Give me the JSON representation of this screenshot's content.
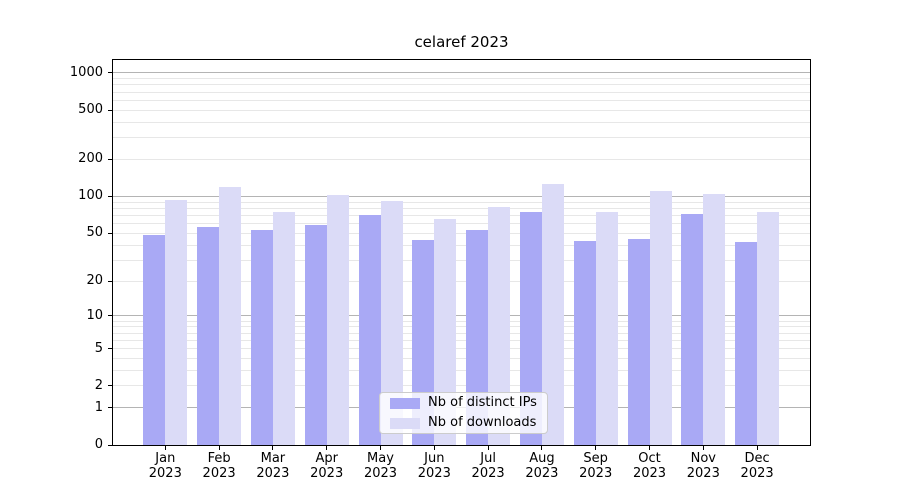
{
  "title": "celaref 2023",
  "chart_data": {
    "type": "bar",
    "title": "celaref 2023",
    "x": {
      "categories": [
        "Jan",
        "Feb",
        "Mar",
        "Apr",
        "May",
        "Jun",
        "Jul",
        "Aug",
        "Sep",
        "Oct",
        "Nov",
        "Dec"
      ],
      "year_label": "2023"
    },
    "series": [
      {
        "name": "Nb of distinct IPs",
        "color": "#a9a9f5",
        "values": [
          48,
          56,
          53,
          58,
          70,
          44,
          53,
          74,
          43,
          45,
          72,
          42
        ]
      },
      {
        "name": "Nb of downloads",
        "color": "#dbdbf7",
        "values": [
          94,
          120,
          74,
          103,
          92,
          66,
          82,
          127,
          74,
          110,
          104,
          75
        ]
      }
    ],
    "y_axis": {
      "scale": "log10(value+1)",
      "tick_labels": [
        "0",
        "1",
        "2",
        "5",
        "10",
        "20",
        "50",
        "100",
        "200",
        "500",
        "1000"
      ],
      "tick_values": [
        0,
        1,
        2,
        5,
        10,
        20,
        50,
        100,
        200,
        500,
        1000
      ],
      "major_gridlines": [
        1,
        10,
        100,
        1000
      ],
      "minor_gridlines": [
        2,
        3,
        4,
        5,
        6,
        7,
        8,
        9,
        20,
        30,
        40,
        50,
        60,
        70,
        80,
        90,
        200,
        300,
        400,
        500,
        600,
        700,
        800,
        900
      ],
      "ylim": [
        0,
        1270
      ]
    },
    "legend": {
      "position": "bottom-center"
    },
    "grid": true
  },
  "colors": {
    "bar_ips": "#a9a9f5",
    "bar_downloads": "#dbdbf7",
    "grid_major": "#b4b4b4",
    "grid_minor": "#e7e7e7",
    "axis": "#000000",
    "legend_border": "#cccccc",
    "background": "#ffffff"
  }
}
